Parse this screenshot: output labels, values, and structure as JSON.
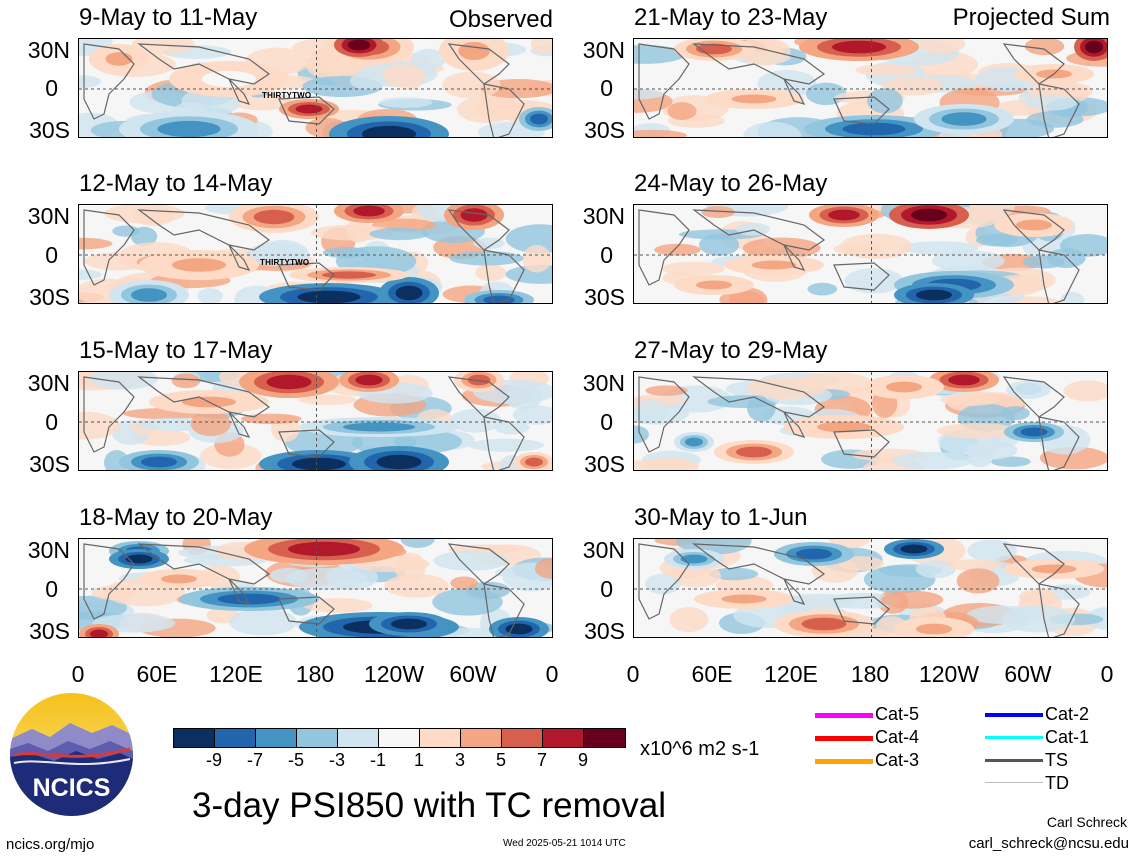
{
  "panels": [
    {
      "title": "9-May to 11-May",
      "label": "Observed",
      "tc": "THIRTYTWO"
    },
    {
      "title": "12-May to 14-May",
      "label": "",
      "tc": "THIRTYTWO"
    },
    {
      "title": "15-May to 17-May",
      "label": "",
      "tc": ""
    },
    {
      "title": "18-May to 20-May",
      "label": "",
      "tc": ""
    },
    {
      "title": "21-May to 23-May",
      "label": "Projected Sum",
      "tc": ""
    },
    {
      "title": "24-May to 26-May",
      "label": "",
      "tc": ""
    },
    {
      "title": "27-May to 29-May",
      "label": "",
      "tc": ""
    },
    {
      "title": "30-May to 1-Jun",
      "label": "",
      "tc": ""
    }
  ],
  "lat_labels": [
    "30N",
    "0",
    "30S"
  ],
  "lon_labels": [
    "0",
    "60E",
    "120E",
    "180",
    "120W",
    "60W",
    "0"
  ],
  "colorbar": {
    "colors": [
      "#0b2f5e",
      "#2166ac",
      "#4393c3",
      "#92c5de",
      "#d1e5f0",
      "#f7f7f7",
      "#fddbc7",
      "#f4a582",
      "#d6604d",
      "#b2182b",
      "#67001f"
    ],
    "ticks": [
      "-9",
      "-7",
      "-5",
      "-3",
      "-1",
      "1",
      "3",
      "5",
      "7",
      "9"
    ],
    "units": "x10^6 m2 s-1"
  },
  "legend": [
    {
      "label": "Cat-5",
      "color": "#ff00ff"
    },
    {
      "label": "Cat-4",
      "color": "#ff0000"
    },
    {
      "label": "Cat-3",
      "color": "#ffa500"
    },
    {
      "label": "Cat-2",
      "color": "#0000ff"
    },
    {
      "label": "Cat-1",
      "color": "#00ffff"
    },
    {
      "label": "TS",
      "color": "#555555"
    },
    {
      "label": "TD",
      "color": "#bbbbbb"
    }
  ],
  "logo_text": "NCICS",
  "main_title": "3-day PSI850 with TC removal",
  "footer": {
    "left": "ncics.org/mjo",
    "center": "Wed 2025-05-21 1014 UTC",
    "author": "Carl Schreck",
    "email": "carl_schreck@ncsu.edu"
  }
}
